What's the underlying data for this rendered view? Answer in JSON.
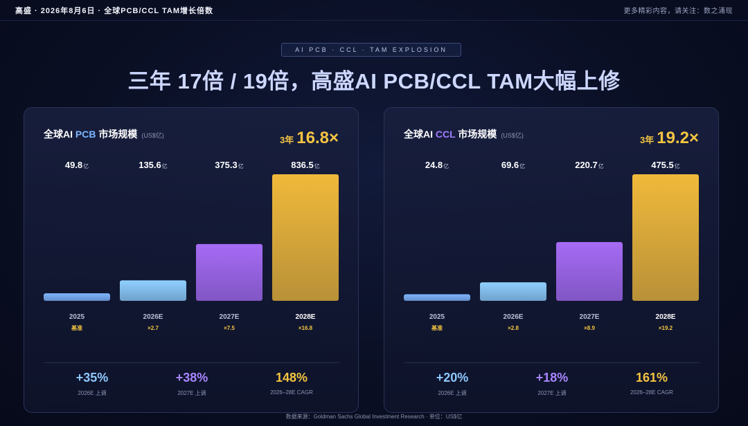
{
  "header": {
    "left": "高盛 · 2026年8月6日 · 全球PCB/CCL TAM增长倍数",
    "right": "更多精彩内容，请关注：数之涌现"
  },
  "tagline": "AI PCB · CCL · TAM EXPLOSION",
  "headline": "三年 17倍 / 19倍，高盛AI PCB/CCL TAM大幅上修",
  "colors": {
    "bar_2025": "#7fb6ff",
    "bar_2026": "#8fd0ff",
    "bar_2027": "#a66bf5",
    "bar_2028": "#f0b93a",
    "growth": "#f4c542",
    "stat_blue": "#8fc8ff",
    "stat_purple": "#a985ff",
    "stat_gold": "#f4c542"
  },
  "panels": [
    {
      "title_prefix": "全球AI ",
      "title_keyword": "PCB",
      "title_suffix": " 市场规模",
      "unit": "(US$亿)",
      "growth_prefix": "3年",
      "growth_value": "16.8×",
      "stats": [
        {
          "value": "+35%",
          "label": "2026E 上调",
          "color": "blue"
        },
        {
          "value": "+38%",
          "label": "2027E 上调",
          "color": "purple"
        },
        {
          "value": "148%",
          "label": "2026–28E CAGR",
          "color": "gold"
        }
      ]
    },
    {
      "title_prefix": "全球AI ",
      "title_keyword": "CCL",
      "title_suffix": " 市场规模",
      "unit": "(US$亿)",
      "growth_prefix": "3年",
      "growth_value": "19.2×",
      "stats": [
        {
          "value": "+20%",
          "label": "2026E 上调",
          "color": "blue"
        },
        {
          "value": "+18%",
          "label": "2027E 上调",
          "color": "purple"
        },
        {
          "value": "161%",
          "label": "2026–28E CAGR",
          "color": "gold"
        }
      ]
    }
  ],
  "chart_data": [
    {
      "type": "bar",
      "title": "全球AI PCB 市场规模",
      "unit": "亿",
      "categories": [
        "2025",
        "2026E",
        "2027E",
        "2028E"
      ],
      "values": [
        49.8,
        135.6,
        375.3,
        836.5
      ],
      "value_labels": [
        "49.8",
        "135.6",
        "375.3",
        "836.5"
      ],
      "multipliers": [
        "基准",
        "×2.7",
        "×7.5",
        "×16.8"
      ]
    },
    {
      "type": "bar",
      "title": "全球AI CCL 市场规模",
      "unit": "亿",
      "categories": [
        "2025",
        "2026E",
        "2027E",
        "2028E"
      ],
      "values": [
        24.8,
        69.6,
        220.7,
        475.5
      ],
      "value_labels": [
        "24.8",
        "69.6",
        "220.7",
        "475.5"
      ],
      "multipliers": [
        "基准",
        "×2.8",
        "×8.9",
        "×19.2"
      ]
    }
  ],
  "footer": "数据来源：Goldman Sachs Global Investment Research · 单位：US$亿"
}
